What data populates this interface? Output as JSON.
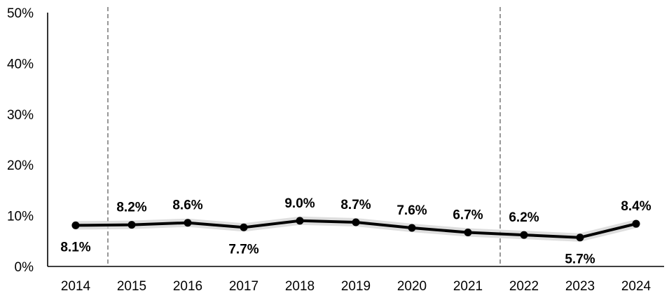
{
  "chart_data": {
    "type": "line",
    "title": "",
    "xlabel": "",
    "ylabel": "",
    "categories": [
      "2014",
      "2015",
      "2016",
      "2017",
      "2018",
      "2019",
      "2020",
      "2021",
      "2022",
      "2023",
      "2024"
    ],
    "series": [
      {
        "values": [
          8.1,
          8.2,
          8.6,
          7.7,
          9.0,
          8.7,
          7.6,
          6.7,
          6.2,
          5.7,
          8.4
        ],
        "data_labels": [
          "8.1%",
          "8.2%",
          "8.6%",
          "7.7%",
          "9.0%",
          "8.7%",
          "7.6%",
          "6.7%",
          "6.2%",
          "5.7%",
          "8.4%"
        ],
        "color": "#000000"
      }
    ],
    "ylim": [
      0,
      50
    ],
    "yticks": [
      0,
      10,
      20,
      30,
      40,
      50
    ],
    "ytick_labels": [
      "0%",
      "10%",
      "20%",
      "30%",
      "40%",
      "50%"
    ],
    "reference_lines": [
      {
        "between": [
          "2014",
          "2015"
        ],
        "style": "dashed",
        "color": "#7f7f7f"
      },
      {
        "between": [
          "2021",
          "2022"
        ],
        "style": "dashed",
        "color": "#7f7f7f"
      }
    ],
    "grid": false,
    "legend": "none"
  }
}
